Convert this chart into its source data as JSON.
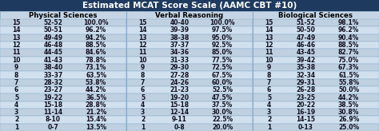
{
  "title": "Estimated MCAT Score Scale (AAMC CBT #10)",
  "sections": [
    "Physical Sciences",
    "Verbal Reasoning",
    "Biological Sciences"
  ],
  "ps_data": [
    [
      15,
      "52-52",
      "100.0%"
    ],
    [
      14,
      "50-51",
      "96.2%"
    ],
    [
      13,
      "49-49",
      "94.2%"
    ],
    [
      12,
      "46-48",
      "88.5%"
    ],
    [
      11,
      "44-45",
      "84.6%"
    ],
    [
      10,
      "41-43",
      "78.8%"
    ],
    [
      9,
      "38-40",
      "73.1%"
    ],
    [
      8,
      "33-37",
      "63.5%"
    ],
    [
      7,
      "28-32",
      "53.8%"
    ],
    [
      6,
      "23-27",
      "44.2%"
    ],
    [
      5,
      "19-22",
      "36.5%"
    ],
    [
      4,
      "15-18",
      "28.8%"
    ],
    [
      3,
      "11-14",
      "21.2%"
    ],
    [
      2,
      "8-10",
      "15.4%"
    ],
    [
      1,
      "0-7",
      "13.5%"
    ]
  ],
  "vr_data": [
    [
      15,
      "40-40",
      "100.0%"
    ],
    [
      14,
      "39-39",
      "97.5%"
    ],
    [
      13,
      "38-38",
      "95.0%"
    ],
    [
      12,
      "37-37",
      "92.5%"
    ],
    [
      11,
      "34-36",
      "85.0%"
    ],
    [
      10,
      "31-33",
      "77.5%"
    ],
    [
      9,
      "29-30",
      "72.5%"
    ],
    [
      8,
      "27-28",
      "67.5%"
    ],
    [
      7,
      "24-26",
      "60.0%"
    ],
    [
      6,
      "21-23",
      "52.5%"
    ],
    [
      5,
      "19-20",
      "47.5%"
    ],
    [
      4,
      "15-18",
      "37.5%"
    ],
    [
      3,
      "12-14",
      "30.0%"
    ],
    [
      2,
      "9-11",
      "22.5%"
    ],
    [
      1,
      "0-8",
      "20.0%"
    ]
  ],
  "bs_data": [
    [
      15,
      "51-52",
      "98.1%"
    ],
    [
      14,
      "50-50",
      "96.2%"
    ],
    [
      13,
      "47-49",
      "90.4%"
    ],
    [
      12,
      "46-46",
      "88.5%"
    ],
    [
      11,
      "43-45",
      "82.7%"
    ],
    [
      10,
      "39-42",
      "75.0%"
    ],
    [
      9,
      "35-38",
      "67.3%"
    ],
    [
      8,
      "32-34",
      "61.5%"
    ],
    [
      7,
      "29-31",
      "55.8%"
    ],
    [
      6,
      "26-28",
      "50.0%"
    ],
    [
      5,
      "23-25",
      "44.2%"
    ],
    [
      4,
      "20-22",
      "38.5%"
    ],
    [
      3,
      "16-19",
      "30.8%"
    ],
    [
      2,
      "14-15",
      "26.9%"
    ],
    [
      1,
      "0-13",
      "25.0%"
    ]
  ],
  "header_bg": "#1e3a5f",
  "header_text": "#ffffff",
  "section_header_bg": "#c5d5e5",
  "section_header_text": "#000000",
  "row_even_bg": "#bfd0e0",
  "row_odd_bg": "#d0e0ee",
  "divider_color": "#8aabcc",
  "text_color": "#111122",
  "title_fontsize": 7.5,
  "section_fontsize": 6.2,
  "cell_fontsize": 5.5
}
